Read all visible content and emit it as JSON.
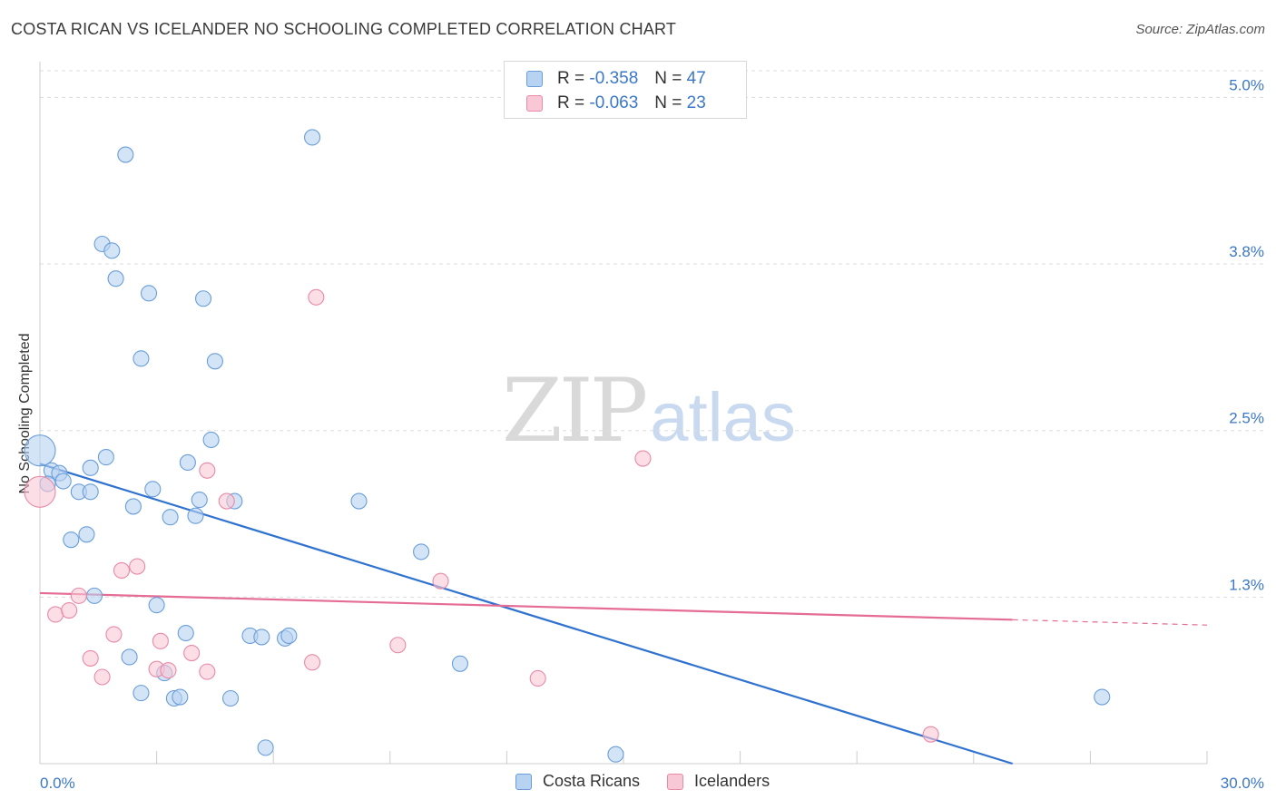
{
  "header": {
    "title": "COSTA RICAN VS ICELANDER NO SCHOOLING COMPLETED CORRELATION CHART",
    "source": "Source: ZipAtlas.com"
  },
  "watermark": {
    "zip": "ZIP",
    "atlas": "atlas"
  },
  "legend": {
    "rows": [
      {
        "r_label": "R =",
        "r_value": "-0.358",
        "n_label": "N =",
        "n_value": "47"
      },
      {
        "r_label": "R =",
        "r_value": "-0.063",
        "n_label": "N =",
        "n_value": "23"
      }
    ]
  },
  "colors": {
    "blue_fill": "#b8d2f2",
    "blue_stroke": "#6a9ed8",
    "blue_line": "#2f72d0",
    "pink_fill": "#f8c8d6",
    "pink_stroke": "#e88aa8",
    "pink_line": "#e46c95",
    "axis_text": "#3b78c9",
    "grid": "#dddddd"
  },
  "chart_data": {
    "type": "scatter",
    "title": "COSTA RICAN VS ICELANDER NO SCHOOLING COMPLETED CORRELATION CHART",
    "xlabel": "",
    "ylabel": "No Schooling Completed",
    "xlim": [
      0,
      30
    ],
    "ylim": [
      0,
      5.2
    ],
    "x_tick_labels": [
      "0.0%",
      "30.0%"
    ],
    "y_ticks": [
      1.25,
      2.5,
      3.75,
      5.0
    ],
    "y_tick_labels": [
      "1.3%",
      "2.5%",
      "3.8%",
      "5.0%"
    ],
    "grid": true,
    "legend_position": "bottom",
    "series": [
      {
        "name": "Costa Ricans",
        "r": -0.358,
        "n": 47,
        "points": [
          {
            "x": 0.0,
            "y": 2.35,
            "big": true
          },
          {
            "x": 0.3,
            "y": 2.2
          },
          {
            "x": 0.5,
            "y": 2.18
          },
          {
            "x": 0.6,
            "y": 2.12
          },
          {
            "x": 1.0,
            "y": 2.04
          },
          {
            "x": 0.8,
            "y": 1.68
          },
          {
            "x": 1.2,
            "y": 1.72
          },
          {
            "x": 1.3,
            "y": 2.04
          },
          {
            "x": 1.3,
            "y": 2.22
          },
          {
            "x": 1.7,
            "y": 2.3
          },
          {
            "x": 2.2,
            "y": 4.57
          },
          {
            "x": 1.6,
            "y": 3.9
          },
          {
            "x": 1.85,
            "y": 3.85
          },
          {
            "x": 1.95,
            "y": 3.64
          },
          {
            "x": 2.8,
            "y": 3.53
          },
          {
            "x": 4.2,
            "y": 3.49
          },
          {
            "x": 2.6,
            "y": 3.04
          },
          {
            "x": 4.5,
            "y": 3.02
          },
          {
            "x": 4.4,
            "y": 2.43
          },
          {
            "x": 3.8,
            "y": 2.26
          },
          {
            "x": 2.9,
            "y": 2.06
          },
          {
            "x": 4.1,
            "y": 1.98
          },
          {
            "x": 5.0,
            "y": 1.97
          },
          {
            "x": 2.4,
            "y": 1.93
          },
          {
            "x": 3.35,
            "y": 1.85
          },
          {
            "x": 4.0,
            "y": 1.86
          },
          {
            "x": 1.4,
            "y": 1.26
          },
          {
            "x": 3.0,
            "y": 1.19
          },
          {
            "x": 3.75,
            "y": 0.98
          },
          {
            "x": 5.4,
            "y": 0.96
          },
          {
            "x": 5.7,
            "y": 0.95
          },
          {
            "x": 6.3,
            "y": 0.94
          },
          {
            "x": 6.4,
            "y": 0.96
          },
          {
            "x": 2.3,
            "y": 0.8
          },
          {
            "x": 3.2,
            "y": 0.68
          },
          {
            "x": 2.6,
            "y": 0.53
          },
          {
            "x": 3.45,
            "y": 0.49
          },
          {
            "x": 3.6,
            "y": 0.5
          },
          {
            "x": 4.9,
            "y": 0.49
          },
          {
            "x": 7.0,
            "y": 4.7
          },
          {
            "x": 8.2,
            "y": 1.97
          },
          {
            "x": 9.8,
            "y": 1.59
          },
          {
            "x": 10.8,
            "y": 0.75
          },
          {
            "x": 5.8,
            "y": 0.12
          },
          {
            "x": 14.8,
            "y": 0.07
          },
          {
            "x": 27.3,
            "y": 0.5
          },
          {
            "x": 0.2,
            "y": 2.1
          }
        ],
        "trend": {
          "x": [
            0,
            25
          ],
          "y": [
            2.25,
            0.0
          ]
        }
      },
      {
        "name": "Icelanders",
        "r": -0.063,
        "n": 23,
        "points": [
          {
            "x": 0.0,
            "y": 2.04,
            "big": true
          },
          {
            "x": 0.4,
            "y": 1.12
          },
          {
            "x": 0.75,
            "y": 1.15
          },
          {
            "x": 1.0,
            "y": 1.26
          },
          {
            "x": 1.3,
            "y": 0.79
          },
          {
            "x": 1.6,
            "y": 0.65
          },
          {
            "x": 1.9,
            "y": 0.97
          },
          {
            "x": 2.1,
            "y": 1.45
          },
          {
            "x": 2.5,
            "y": 1.48
          },
          {
            "x": 3.0,
            "y": 0.71
          },
          {
            "x": 3.1,
            "y": 0.92
          },
          {
            "x": 3.3,
            "y": 0.7
          },
          {
            "x": 3.9,
            "y": 0.83
          },
          {
            "x": 4.3,
            "y": 0.69
          },
          {
            "x": 4.3,
            "y": 2.2
          },
          {
            "x": 4.8,
            "y": 1.97
          },
          {
            "x": 7.0,
            "y": 0.76
          },
          {
            "x": 7.1,
            "y": 3.5
          },
          {
            "x": 9.2,
            "y": 0.89
          },
          {
            "x": 10.3,
            "y": 1.37
          },
          {
            "x": 12.8,
            "y": 0.64
          },
          {
            "x": 15.5,
            "y": 2.29
          },
          {
            "x": 22.9,
            "y": 0.22
          }
        ],
        "trend": {
          "x": [
            0,
            25
          ],
          "y": [
            1.28,
            1.08
          ]
        },
        "trend_dashed": {
          "x": [
            25,
            30
          ],
          "y": [
            1.08,
            1.04
          ]
        }
      }
    ]
  }
}
